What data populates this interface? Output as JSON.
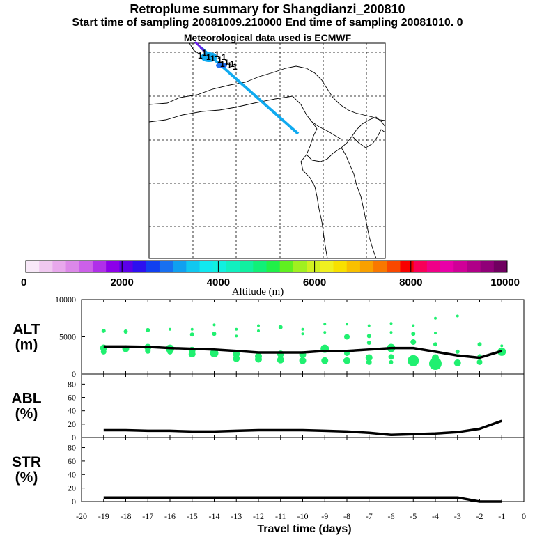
{
  "header": {
    "title": "Retroplume summary for Shangdianzi_200810",
    "sampling": "Start time of sampling 20081009.210000      End time of sampling 20081010.      0",
    "met": "Meteorological data used is ECMWF"
  },
  "colorbar": {
    "label": "Altitude (m)",
    "ticks": [
      "0",
      "2000",
      "4000",
      "6000",
      "8000",
      "10000"
    ],
    "colors": [
      "#f8e8f8",
      "#f0c8f0",
      "#e8a8ec",
      "#dc88e8",
      "#cc60e8",
      "#b030e8",
      "#8c00e8",
      "#5c00e8",
      "#2c10f0",
      "#1040f0",
      "#1870f0",
      "#10a0f0",
      "#10c8f0",
      "#10e8f0",
      "#10f0e0",
      "#10f0c0",
      "#10f0a0",
      "#10f078",
      "#20f048",
      "#60f020",
      "#a0f020",
      "#d0f020",
      "#f0f020",
      "#f8e000",
      "#f8c000",
      "#f8a000",
      "#f87800",
      "#f84800",
      "#f80000",
      "#f80058",
      "#f00088",
      "#e800a8",
      "#d00098",
      "#b00088",
      "#900078",
      "#700060"
    ]
  },
  "map": {
    "plume_color": "#10aaf0",
    "marker_labels": [
      "1",
      "1",
      "1",
      "1",
      "1",
      "1",
      "1",
      "1",
      "1",
      "1",
      "1",
      "1"
    ]
  },
  "chart_data": [
    {
      "type": "line",
      "name": "ALT",
      "ylabel": "ALT (m)",
      "ylabel_lines": [
        "ALT",
        "(m)"
      ],
      "ylim": [
        0,
        10000
      ],
      "yticks": [
        "10000",
        "5000",
        "0"
      ],
      "x": [
        -19,
        -18,
        -17,
        -16,
        -15,
        -14,
        -13,
        -12,
        -11,
        -10,
        -9,
        -8,
        -7,
        -6,
        -5,
        -4,
        -3,
        -2,
        -1
      ],
      "values": [
        3700,
        3700,
        3650,
        3500,
        3400,
        3300,
        3100,
        2900,
        2900,
        2900,
        3100,
        3100,
        3300,
        3500,
        3500,
        3000,
        2500,
        2200,
        3100
      ],
      "scatter_color": "#20f070",
      "scatter": [
        {
          "x": -19,
          "y": 5800,
          "s": 3
        },
        {
          "x": -19,
          "y": 3500,
          "s": 5
        },
        {
          "x": -19,
          "y": 3000,
          "s": 4
        },
        {
          "x": -18,
          "y": 5700,
          "s": 3
        },
        {
          "x": -18,
          "y": 3400,
          "s": 5
        },
        {
          "x": -17,
          "y": 5900,
          "s": 3
        },
        {
          "x": -17,
          "y": 3600,
          "s": 5
        },
        {
          "x": -17,
          "y": 3100,
          "s": 4
        },
        {
          "x": -16,
          "y": 6000,
          "s": 2
        },
        {
          "x": -16,
          "y": 3400,
          "s": 6
        },
        {
          "x": -16,
          "y": 3000,
          "s": 4
        },
        {
          "x": -15,
          "y": 6000,
          "s": 2
        },
        {
          "x": -15,
          "y": 5300,
          "s": 3
        },
        {
          "x": -15,
          "y": 3200,
          "s": 5
        },
        {
          "x": -15,
          "y": 2700,
          "s": 5
        },
        {
          "x": -14,
          "y": 6600,
          "s": 2
        },
        {
          "x": -14,
          "y": 5400,
          "s": 3
        },
        {
          "x": -14,
          "y": 2800,
          "s": 6
        },
        {
          "x": -13,
          "y": 6000,
          "s": 2
        },
        {
          "x": -13,
          "y": 5100,
          "s": 2
        },
        {
          "x": -13,
          "y": 2700,
          "s": 5
        },
        {
          "x": -13,
          "y": 2100,
          "s": 5
        },
        {
          "x": -12,
          "y": 6500,
          "s": 2
        },
        {
          "x": -12,
          "y": 5800,
          "s": 2
        },
        {
          "x": -12,
          "y": 2400,
          "s": 5
        },
        {
          "x": -12,
          "y": 2000,
          "s": 5
        },
        {
          "x": -11,
          "y": 6300,
          "s": 3
        },
        {
          "x": -11,
          "y": 2700,
          "s": 5
        },
        {
          "x": -11,
          "y": 1900,
          "s": 5
        },
        {
          "x": -10,
          "y": 6000,
          "s": 2
        },
        {
          "x": -10,
          "y": 5400,
          "s": 2
        },
        {
          "x": -10,
          "y": 2600,
          "s": 5
        },
        {
          "x": -10,
          "y": 1800,
          "s": 5
        },
        {
          "x": -9,
          "y": 6700,
          "s": 2
        },
        {
          "x": -9,
          "y": 5600,
          "s": 2
        },
        {
          "x": -9,
          "y": 3400,
          "s": 6
        },
        {
          "x": -9,
          "y": 1800,
          "s": 5
        },
        {
          "x": -8,
          "y": 6700,
          "s": 2
        },
        {
          "x": -8,
          "y": 5000,
          "s": 4
        },
        {
          "x": -8,
          "y": 2800,
          "s": 4
        },
        {
          "x": -8,
          "y": 1800,
          "s": 5
        },
        {
          "x": -7,
          "y": 6500,
          "s": 2
        },
        {
          "x": -7,
          "y": 5100,
          "s": 3
        },
        {
          "x": -7,
          "y": 4200,
          "s": 3
        },
        {
          "x": -7,
          "y": 2200,
          "s": 5
        },
        {
          "x": -7,
          "y": 1600,
          "s": 4
        },
        {
          "x": -6,
          "y": 6800,
          "s": 2
        },
        {
          "x": -6,
          "y": 5600,
          "s": 2
        },
        {
          "x": -6,
          "y": 3500,
          "s": 6
        },
        {
          "x": -6,
          "y": 2300,
          "s": 4
        },
        {
          "x": -6,
          "y": 1600,
          "s": 3
        },
        {
          "x": -5,
          "y": 6500,
          "s": 2
        },
        {
          "x": -5,
          "y": 5400,
          "s": 3
        },
        {
          "x": -5,
          "y": 4300,
          "s": 4
        },
        {
          "x": -5,
          "y": 1800,
          "s": 8
        },
        {
          "x": -4,
          "y": 7500,
          "s": 2
        },
        {
          "x": -4,
          "y": 5500,
          "s": 2
        },
        {
          "x": -4,
          "y": 4000,
          "s": 3
        },
        {
          "x": -4,
          "y": 2200,
          "s": 5
        },
        {
          "x": -4,
          "y": 1400,
          "s": 9
        },
        {
          "x": -3,
          "y": 7800,
          "s": 2
        },
        {
          "x": -3,
          "y": 3000,
          "s": 3
        },
        {
          "x": -3,
          "y": 1500,
          "s": 5
        },
        {
          "x": -2,
          "y": 4000,
          "s": 3
        },
        {
          "x": -2,
          "y": 2400,
          "s": 3
        },
        {
          "x": -2,
          "y": 1600,
          "s": 4
        },
        {
          "x": -1,
          "y": 3800,
          "s": 2
        },
        {
          "x": -1,
          "y": 3000,
          "s": 6
        }
      ]
    },
    {
      "type": "line",
      "name": "ABL",
      "ylabel": "ABL (%)",
      "ylabel_lines": [
        "ABL",
        "(%)"
      ],
      "ylim": [
        0,
        95
      ],
      "yticks": [
        "80",
        "60",
        "40",
        "20",
        "0"
      ],
      "x": [
        -19,
        -18,
        -17,
        -16,
        -15,
        -14,
        -13,
        -12,
        -11,
        -10,
        -9,
        -8,
        -7,
        -6,
        -5,
        -4,
        -3,
        -2,
        -1
      ],
      "values": [
        11,
        11,
        10,
        10,
        9,
        9,
        10,
        11,
        11,
        11,
        10,
        9,
        7,
        4,
        5,
        6,
        8,
        13,
        25
      ]
    },
    {
      "type": "line",
      "name": "STR",
      "ylabel": "STR (%)",
      "ylabel_lines": [
        "STR",
        "(%)"
      ],
      "ylim": [
        0,
        95
      ],
      "yticks": [
        "80",
        "60",
        "40",
        "20",
        "0"
      ],
      "x": [
        -19,
        -18,
        -17,
        -16,
        -15,
        -14,
        -13,
        -12,
        -11,
        -10,
        -9,
        -8,
        -7,
        -6,
        -5,
        -4,
        -3,
        -2,
        -1
      ],
      "values": [
        6,
        6,
        6,
        6,
        6,
        6,
        6,
        6,
        6,
        6,
        6,
        6,
        6,
        6,
        6,
        6,
        6,
        0,
        0
      ]
    }
  ],
  "xaxis": {
    "label": "Travel time (days)",
    "xlim": [
      -20,
      0
    ],
    "ticks": [
      "-20",
      "-19",
      "-18",
      "-17",
      "-16",
      "-15",
      "-14",
      "-13",
      "-12",
      "-11",
      "-10",
      "-9",
      "-8",
      "-7",
      "-6",
      "-5",
      "-4",
      "-3",
      "-2",
      "-1",
      "0"
    ]
  }
}
